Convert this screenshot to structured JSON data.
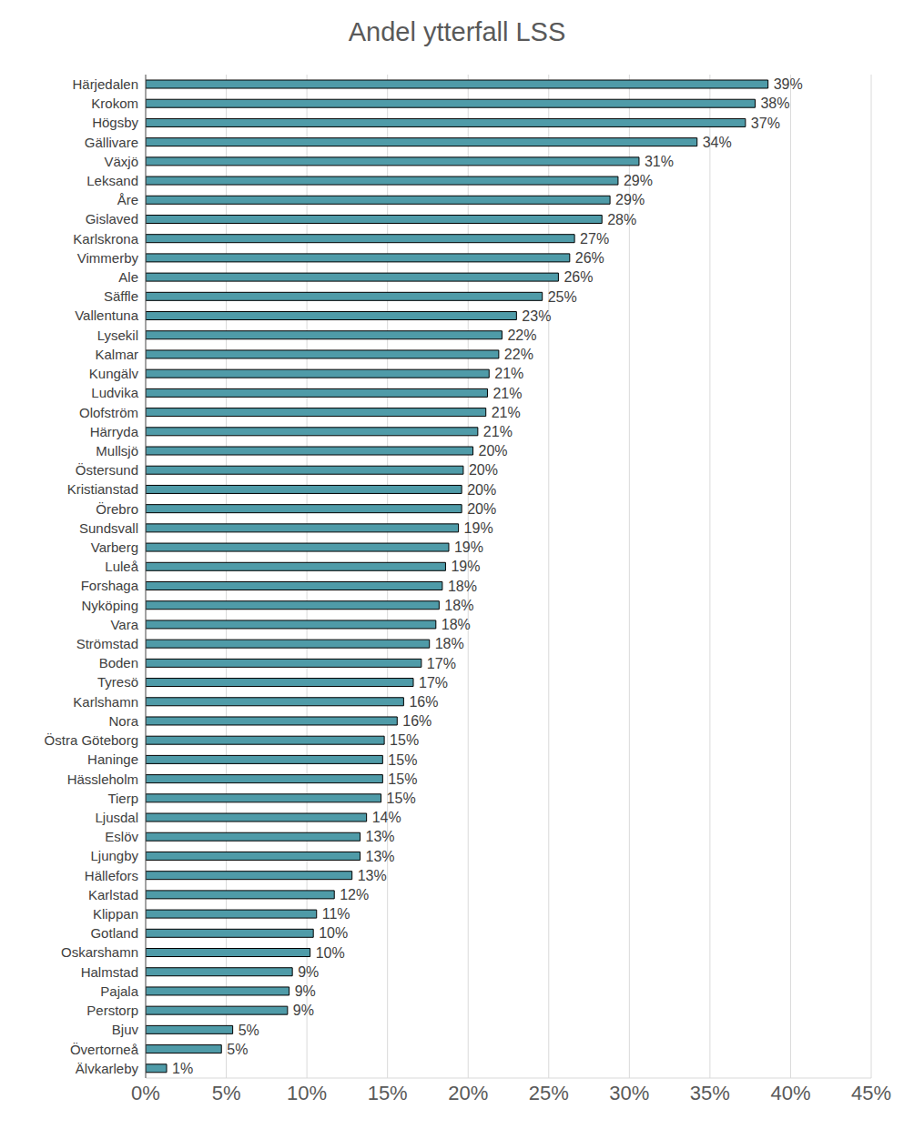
{
  "chart_data": {
    "type": "bar",
    "title": "Andel ytterfall LSS",
    "orientation": "horizontal",
    "color": "#4f9ba8",
    "grid": true,
    "data_labels": true,
    "categories": [
      "Härjedalen",
      "Krokom",
      "Högsby",
      "Gällivare",
      "Växjö",
      "Leksand",
      "Åre",
      "Gislaved",
      "Karlskrona",
      "Vimmerby",
      "Ale",
      "Säffle",
      "Vallentuna",
      "Lysekil",
      "Kalmar",
      "Kungälv",
      "Ludvika",
      "Olofström",
      "Härryda",
      "Mullsjö",
      "Östersund",
      "Kristianstad",
      "Örebro",
      "Sundsvall",
      "Varberg",
      "Luleå",
      "Forshaga",
      "Nyköping",
      "Vara",
      "Strömstad",
      "Boden",
      "Tyresö",
      "Karlshamn",
      "Nora",
      "Östra Göteborg",
      "Haninge",
      "Hässleholm",
      "Tierp",
      "Ljusdal",
      "Eslöv",
      "Ljungby",
      "Hällefors",
      "Karlstad",
      "Klippan",
      "Gotland",
      "Oskarshamn",
      "Halmstad",
      "Pajala",
      "Perstorp",
      "Bjuv",
      "Övertorneå",
      "Älvkarleby"
    ],
    "values": [
      38.6,
      37.8,
      37.2,
      34.2,
      30.6,
      29.3,
      28.8,
      28.3,
      26.6,
      26.3,
      25.6,
      24.6,
      23.0,
      22.1,
      21.9,
      21.3,
      21.2,
      21.1,
      20.6,
      20.3,
      19.7,
      19.6,
      19.6,
      19.4,
      18.8,
      18.6,
      18.4,
      18.2,
      18.0,
      17.6,
      17.1,
      16.6,
      16.0,
      15.6,
      14.8,
      14.7,
      14.7,
      14.6,
      13.7,
      13.3,
      13.3,
      12.8,
      11.7,
      10.6,
      10.4,
      10.2,
      9.1,
      8.9,
      8.8,
      5.4,
      4.7,
      1.3
    ],
    "value_labels": [
      "39%",
      "38%",
      "37%",
      "34%",
      "31%",
      "29%",
      "29%",
      "28%",
      "27%",
      "26%",
      "26%",
      "25%",
      "23%",
      "22%",
      "22%",
      "21%",
      "21%",
      "21%",
      "21%",
      "20%",
      "20%",
      "20%",
      "20%",
      "19%",
      "19%",
      "19%",
      "18%",
      "18%",
      "18%",
      "18%",
      "17%",
      "17%",
      "16%",
      "16%",
      "15%",
      "15%",
      "15%",
      "15%",
      "14%",
      "13%",
      "13%",
      "13%",
      "12%",
      "11%",
      "10%",
      "10%",
      "9%",
      "9%",
      "9%",
      "5%",
      "5%",
      "1%"
    ],
    "xlim": [
      0,
      45
    ],
    "xticks": [
      {
        "value": 0,
        "label": "0%"
      },
      {
        "value": 5,
        "label": "5%"
      },
      {
        "value": 10,
        "label": "10%"
      },
      {
        "value": 15,
        "label": "15%"
      },
      {
        "value": 20,
        "label": "20%"
      },
      {
        "value": 25,
        "label": "25%"
      },
      {
        "value": 30,
        "label": "30%"
      },
      {
        "value": 35,
        "label": "35%"
      },
      {
        "value": 40,
        "label": "40%"
      },
      {
        "value": 45,
        "label": "45%"
      }
    ]
  }
}
